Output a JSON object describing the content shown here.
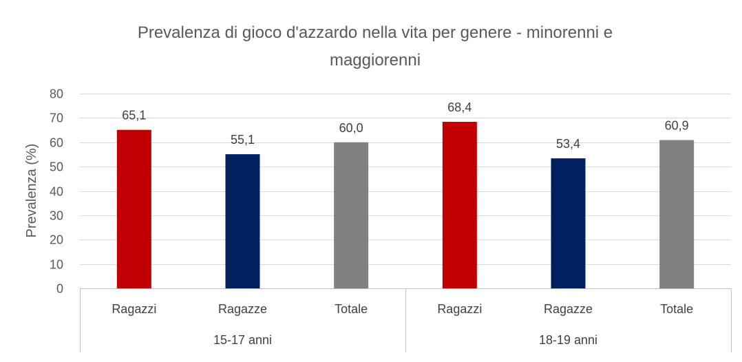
{
  "chart_data": {
    "type": "bar",
    "title_lines": [
      "Prevalenza di gioco d'azzardo nella vita per genere - minorenni e",
      "maggiorenni"
    ],
    "xlabel": "",
    "ylabel": "Prevalenza (%)",
    "ylim": [
      0,
      80
    ],
    "yticks": [
      0,
      10,
      20,
      30,
      40,
      50,
      60,
      70,
      80
    ],
    "grid": true,
    "legend": "none",
    "groups": [
      {
        "label": "15-17 anni",
        "bars": [
          {
            "category": "Ragazzi",
            "value": 65.1,
            "value_label": "65,1",
            "color": "#c00000"
          },
          {
            "category": "Ragazze",
            "value": 55.1,
            "value_label": "55,1",
            "color": "#002060"
          },
          {
            "category": "Totale",
            "value": 60.0,
            "value_label": "60,0",
            "color": "#808080"
          }
        ]
      },
      {
        "label": "18-19 anni",
        "bars": [
          {
            "category": "Ragazzi",
            "value": 68.4,
            "value_label": "68,4",
            "color": "#c00000"
          },
          {
            "category": "Ragazze",
            "value": 53.4,
            "value_label": "53,4",
            "color": "#002060"
          },
          {
            "category": "Totale",
            "value": 60.9,
            "value_label": "60,9",
            "color": "#808080"
          }
        ]
      }
    ]
  }
}
